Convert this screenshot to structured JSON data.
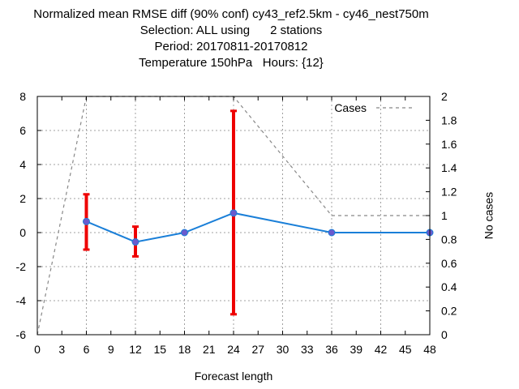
{
  "chart_data": {
    "type": "line",
    "title_lines": [
      "Normalized mean RMSE diff (90% conf) cy43_ref2.5km - cy46_nest750m",
      "Selection: ALL using      2 stations",
      "Period: 20170811-20170812",
      "Temperature 150hPa   Hours: {12}"
    ],
    "xlabel": "Forecast length",
    "ylabel": "",
    "y2label": "No cases",
    "xlim": [
      0,
      48
    ],
    "ylim": [
      -6,
      8
    ],
    "y2lim": [
      0,
      2
    ],
    "x_ticks": [
      0,
      3,
      6,
      9,
      12,
      15,
      18,
      21,
      24,
      27,
      30,
      33,
      36,
      39,
      42,
      45,
      48
    ],
    "y_ticks": [
      -6,
      -4,
      -2,
      0,
      2,
      4,
      6,
      8
    ],
    "y2_ticks": [
      "0",
      "0.2",
      "0.4",
      "0.6",
      "0.8",
      "1",
      "1.2",
      "1.4",
      "1.6",
      "1.8",
      "2"
    ],
    "grid": true,
    "legend_position": "top-right",
    "series": [
      {
        "x": [
          6,
          12,
          18,
          24,
          36,
          48
        ],
        "y": [
          0.65,
          -0.55,
          0.0,
          1.15,
          0.0,
          0.0
        ],
        "err_low": [
          -1.0,
          -1.4,
          null,
          -4.8,
          null,
          null
        ],
        "err_high": [
          2.25,
          0.35,
          null,
          7.15,
          null,
          null
        ],
        "color": "#1a7fd8",
        "marker_color": "#6a5acd",
        "errorbar_color": "#ee0000"
      },
      {
        "name": "Cases",
        "axis": "y2",
        "x": [
          0,
          6,
          24,
          36,
          48
        ],
        "y": [
          0,
          2,
          2,
          1,
          1
        ],
        "color": "#888888",
        "style": "dashed"
      }
    ]
  }
}
